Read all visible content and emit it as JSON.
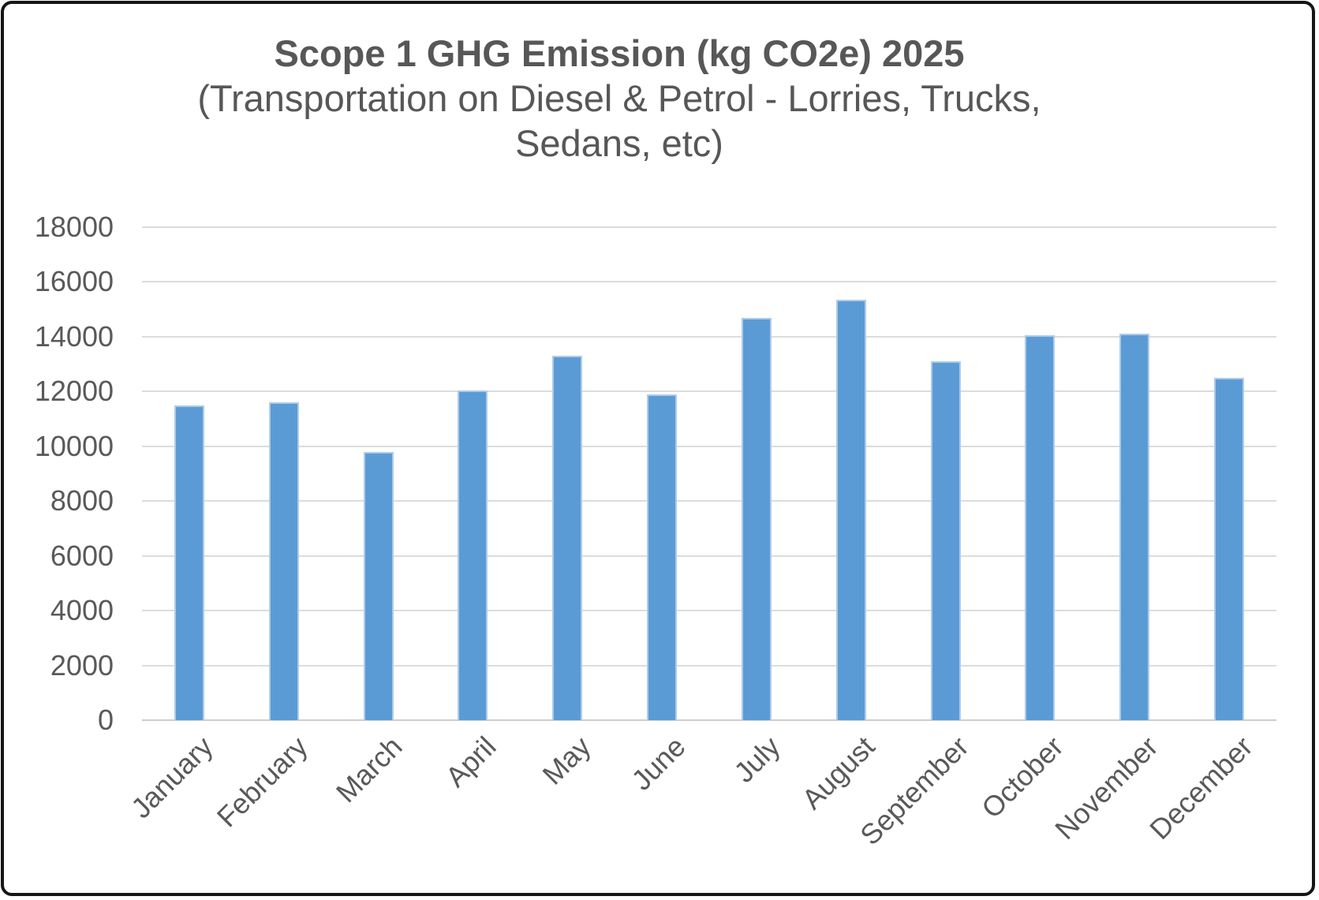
{
  "title": {
    "line1": "Scope 1 GHG Emission (kg CO2e) 2025",
    "line2": "(Transportation on Diesel & Petrol - Lorries, Trucks,",
    "line3": "Sedans, etc)"
  },
  "chart_data": {
    "type": "bar",
    "title": "Scope 1 GHG Emission (kg CO2e) 2025 (Transportation on Diesel & Petrol - Lorries, Trucks, Sedans, etc)",
    "categories": [
      "January",
      "February",
      "March",
      "April",
      "May",
      "June",
      "July",
      "August",
      "September",
      "October",
      "November",
      "December"
    ],
    "values": [
      11500,
      11600,
      9800,
      12050,
      13300,
      11900,
      14700,
      15350,
      13100,
      14050,
      14100,
      12500
    ],
    "xlabel": "",
    "ylabel": "",
    "ylim": [
      0,
      18000
    ],
    "yticks": [
      0,
      2000,
      4000,
      6000,
      8000,
      10000,
      12000,
      14000,
      16000,
      18000
    ],
    "grid": true,
    "legend": false,
    "x_label_rotation_deg": 45,
    "colors": {
      "bar_fill": "#5B9BD5",
      "bar_border": "#AECBEA",
      "gridline": "#DCDCDC",
      "axis_text": "#595959",
      "title_text": "#575757",
      "frame_border": "#161616",
      "background": "#FFFFFF"
    }
  }
}
